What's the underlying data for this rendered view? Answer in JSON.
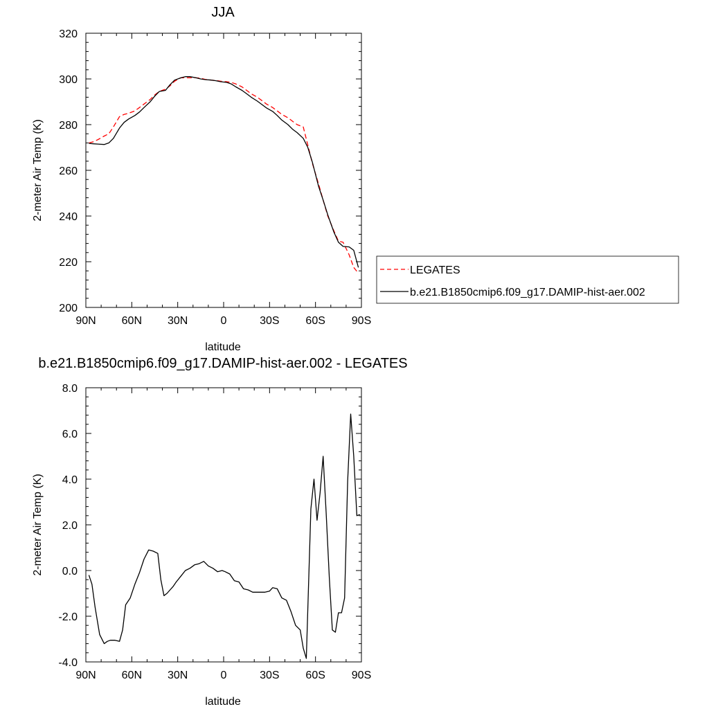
{
  "chart_data": [
    {
      "type": "line",
      "title": "JJA",
      "xlabel": "latitude",
      "ylabel": "2-meter Air Temp (K)",
      "xlim": [
        90,
        -90
      ],
      "ylim": [
        200,
        320
      ],
      "x_ticks": [
        90,
        60,
        30,
        0,
        -30,
        -60,
        -90
      ],
      "x_tick_labels": [
        "90N",
        "60N",
        "30N",
        "0",
        "30S",
        "60S",
        "90S"
      ],
      "y_ticks": [
        200,
        220,
        240,
        260,
        280,
        300,
        320
      ],
      "y_tick_labels": [
        "200",
        "220",
        "240",
        "260",
        "280",
        "300",
        "320"
      ],
      "grid": false,
      "legend_position": "right",
      "series": [
        {
          "name": "LEGATES",
          "color": "#ff0000",
          "dash": "dashed",
          "x": [
            88,
            85,
            82,
            78,
            75,
            72,
            68,
            65,
            62,
            58,
            55,
            52,
            48,
            45,
            42,
            38,
            35,
            32,
            28,
            25,
            22,
            18,
            15,
            12,
            8,
            5,
            2,
            -2,
            -5,
            -8,
            -12,
            -15,
            -18,
            -22,
            -25,
            -28,
            -32,
            -35,
            -38,
            -42,
            -45,
            -48,
            -52,
            -55,
            -58,
            -62,
            -65,
            -68,
            -72,
            -75,
            -78,
            -82,
            -85,
            -88
          ],
          "y": [
            272,
            272.5,
            273.5,
            275,
            276,
            279,
            283.5,
            284.5,
            285,
            286,
            287.5,
            289,
            291,
            293,
            294.5,
            295.5,
            297,
            299,
            300.5,
            300.5,
            300.5,
            300.5,
            300.3,
            299.8,
            299.5,
            299.3,
            299,
            298.8,
            298.5,
            297.8,
            296.5,
            295,
            293.5,
            292,
            290.5,
            289,
            287.5,
            286,
            284.5,
            283,
            281.5,
            280,
            279,
            271,
            263,
            254,
            247,
            240,
            233.5,
            229,
            228.5,
            223,
            217.5,
            215
          ]
        },
        {
          "name": "b.e21.B1850cmip6.f09_g17.DAMIP-hist-aer.002",
          "color": "#000000",
          "dash": "solid",
          "x": [
            88,
            85,
            82,
            78,
            75,
            72,
            68,
            65,
            62,
            58,
            55,
            52,
            48,
            45,
            42,
            38,
            35,
            32,
            28,
            25,
            22,
            18,
            15,
            12,
            8,
            5,
            2,
            -2,
            -5,
            -8,
            -12,
            -15,
            -18,
            -22,
            -25,
            -28,
            -32,
            -35,
            -38,
            -42,
            -45,
            -48,
            -52,
            -55,
            -58,
            -62,
            -65,
            -68,
            -72,
            -75,
            -78,
            -82,
            -85,
            -88
          ],
          "y": [
            271.8,
            271.6,
            271.5,
            271.3,
            272,
            274,
            278.5,
            281,
            282.5,
            284,
            285.5,
            287.5,
            290,
            292.5,
            294.5,
            295,
            297.5,
            299.5,
            300.5,
            301,
            301,
            300.5,
            300,
            299.7,
            299.5,
            299.2,
            298.8,
            298.5,
            297.8,
            296.5,
            295,
            293.5,
            292,
            290.3,
            288.8,
            287.3,
            285.8,
            284,
            282,
            280,
            278,
            276.5,
            274,
            270,
            263.5,
            253,
            247,
            240.5,
            233,
            228.5,
            226.7,
            226.5,
            225,
            217.5
          ]
        }
      ]
    },
    {
      "type": "line",
      "title": "b.e21.B1850cmip6.f09_g17.DAMIP-hist-aer.002 - LEGATES",
      "xlabel": "latitude",
      "ylabel": "2-meter Air Temp (K)",
      "xlim": [
        90,
        -90
      ],
      "ylim": [
        -4,
        8
      ],
      "x_ticks": [
        90,
        60,
        30,
        0,
        -30,
        -60,
        -90
      ],
      "x_tick_labels": [
        "90N",
        "60N",
        "30N",
        "0",
        "30S",
        "60S",
        "90S"
      ],
      "y_ticks": [
        -4,
        -2,
        0,
        2,
        4,
        6,
        8
      ],
      "y_tick_labels": [
        "-4.0",
        "-2.0",
        "0.0",
        "2.0",
        "4.0",
        "6.0",
        "8.0"
      ],
      "grid": false,
      "series": [
        {
          "color": "#000000",
          "dash": "solid",
          "x": [
            88,
            86,
            84,
            81,
            78,
            76,
            74,
            71,
            68,
            66,
            64,
            61,
            58,
            55,
            52,
            49,
            46,
            43,
            41,
            39,
            37,
            35,
            33,
            31,
            28,
            25,
            22,
            19,
            16,
            13,
            10,
            7,
            4,
            1,
            -1,
            -4,
            -7,
            -10,
            -13,
            -16,
            -19,
            -21,
            -24,
            -27,
            -30,
            -32,
            -35,
            -38,
            -41,
            -44,
            -47,
            -50,
            -52,
            -54,
            -57,
            -59,
            -61,
            -63,
            -65,
            -67,
            -69,
            -71,
            -73,
            -75,
            -77,
            -79,
            -81,
            -83,
            -85,
            -87,
            -89
          ],
          "y": [
            -0.2,
            -0.6,
            -1.6,
            -2.8,
            -3.2,
            -3.1,
            -3.05,
            -3.05,
            -3.1,
            -2.6,
            -1.5,
            -1.2,
            -0.6,
            -0.1,
            0.5,
            0.9,
            0.85,
            0.75,
            -0.4,
            -1.1,
            -1.0,
            -0.85,
            -0.7,
            -0.5,
            -0.25,
            0.0,
            0.1,
            0.25,
            0.3,
            0.4,
            0.2,
            0.1,
            -0.05,
            0.0,
            -0.05,
            -0.15,
            -0.45,
            -0.5,
            -0.8,
            -0.85,
            -0.95,
            -0.95,
            -0.95,
            -0.95,
            -0.9,
            -0.75,
            -0.8,
            -1.2,
            -1.3,
            -1.8,
            -2.4,
            -2.6,
            -3.4,
            -3.85,
            2.7,
            4.0,
            2.2,
            3.4,
            5.0,
            2.5,
            -0.3,
            -2.6,
            -2.7,
            -1.85,
            -1.85,
            -1.2,
            3.9,
            6.85,
            5.0,
            2.4,
            2.45
          ]
        }
      ]
    }
  ]
}
